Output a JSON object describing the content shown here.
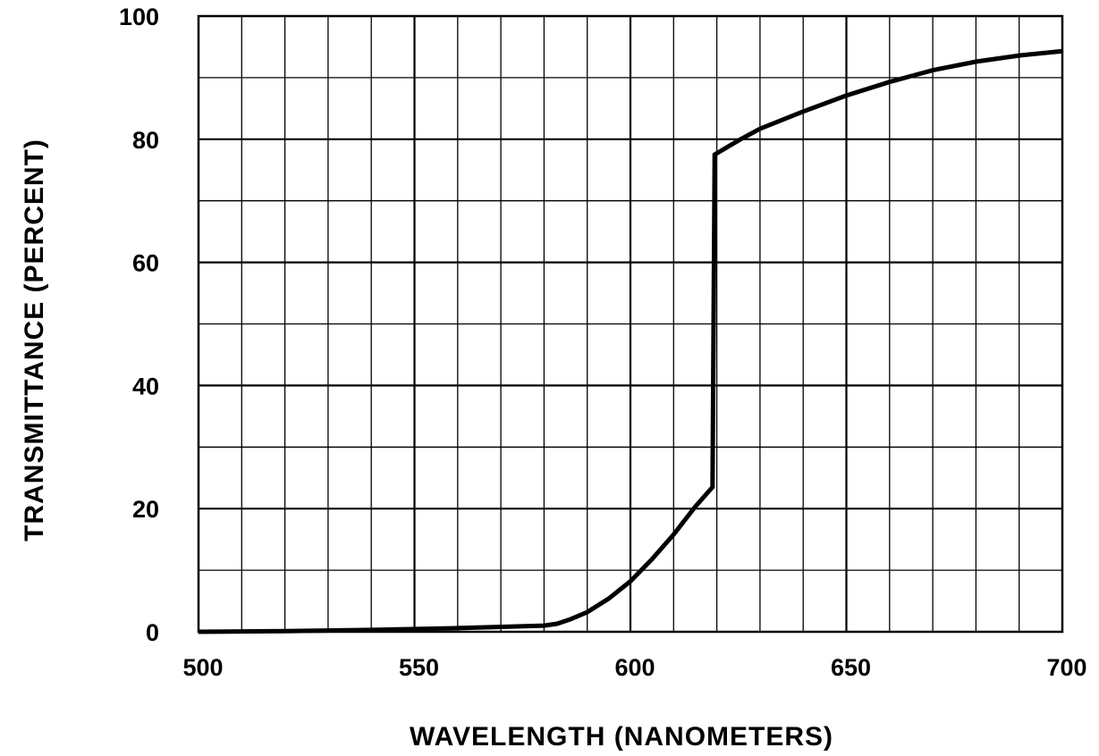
{
  "chart_data": {
    "type": "line",
    "title": "",
    "xlabel": "WAVELENGTH (NANOMETERS)",
    "ylabel": "TRANSMITTANCE (PERCENT)",
    "xlim": [
      500,
      700
    ],
    "ylim": [
      0,
      100
    ],
    "x_ticks": [
      500,
      550,
      600,
      650,
      700
    ],
    "y_ticks": [
      0,
      20,
      40,
      60,
      80,
      100
    ],
    "x_tick_labels": [
      "500",
      "550",
      "600",
      "650",
      "700"
    ],
    "y_tick_labels": [
      "0",
      "20",
      "40",
      "60",
      "80",
      "100"
    ],
    "grid": true,
    "x_minor_step": 10,
    "y_minor_step": 10,
    "line_color": "#000000",
    "series": [
      {
        "x": [
          500,
          520,
          540,
          560,
          570,
          580,
          583,
          586,
          590,
          595,
          600,
          605,
          610,
          615,
          619,
          619.5,
          625,
          630,
          640,
          650,
          660,
          670,
          680,
          690,
          700
        ],
        "y": [
          0,
          0.1,
          0.3,
          0.6,
          0.8,
          1.0,
          1.3,
          2.0,
          3.2,
          5.4,
          8.2,
          11.8,
          15.8,
          20.3,
          23.5,
          77.5,
          79.8,
          81.7,
          84.5,
          87.1,
          89.3,
          91.2,
          92.6,
          93.6,
          94.3
        ]
      }
    ]
  }
}
